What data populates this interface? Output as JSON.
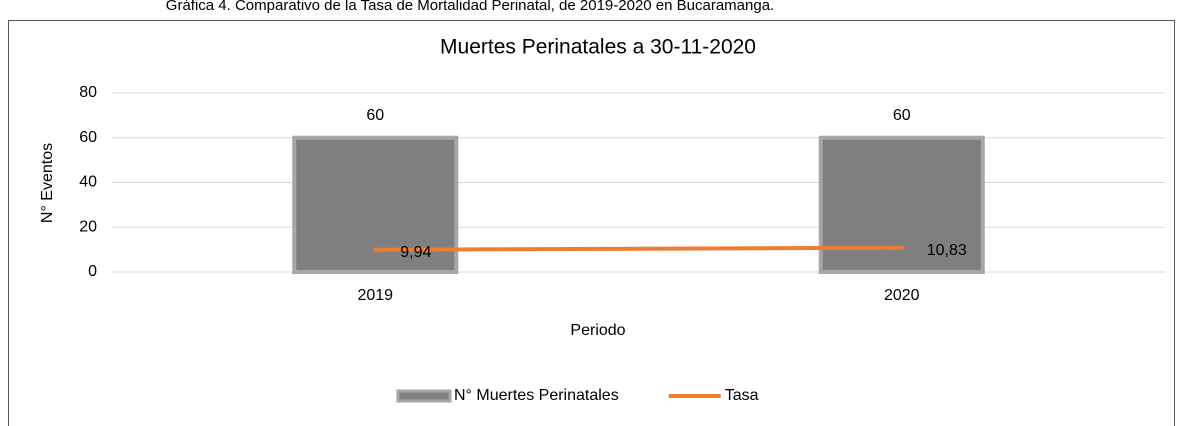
{
  "caption": "Gráfica 4. Comparativo de la Tasa de Mortalidad Perinatal, de 2019-2020 en Bucaramanga.",
  "chart_data": {
    "type": "combo",
    "title": "Muertes Perinatales a 30-11-2020",
    "x_label": "Periodo",
    "y_label": "N° Eventos",
    "categories": [
      "2019",
      "2020"
    ],
    "series": [
      {
        "name": "N° Muertes Perinatales",
        "type": "bar",
        "color": "#7f7f7f",
        "border_color": "#a6a6a6",
        "values": [
          60,
          60
        ]
      },
      {
        "name": "Tasa",
        "type": "line",
        "color": "#ed7d31",
        "values": [
          9.94,
          10.83
        ],
        "value_labels": [
          "9,94",
          "10,83"
        ]
      }
    ],
    "ylim": [
      0,
      80
    ],
    "yticks": [
      0,
      20,
      40,
      60,
      80
    ],
    "grid": true,
    "legend": "bottom"
  }
}
